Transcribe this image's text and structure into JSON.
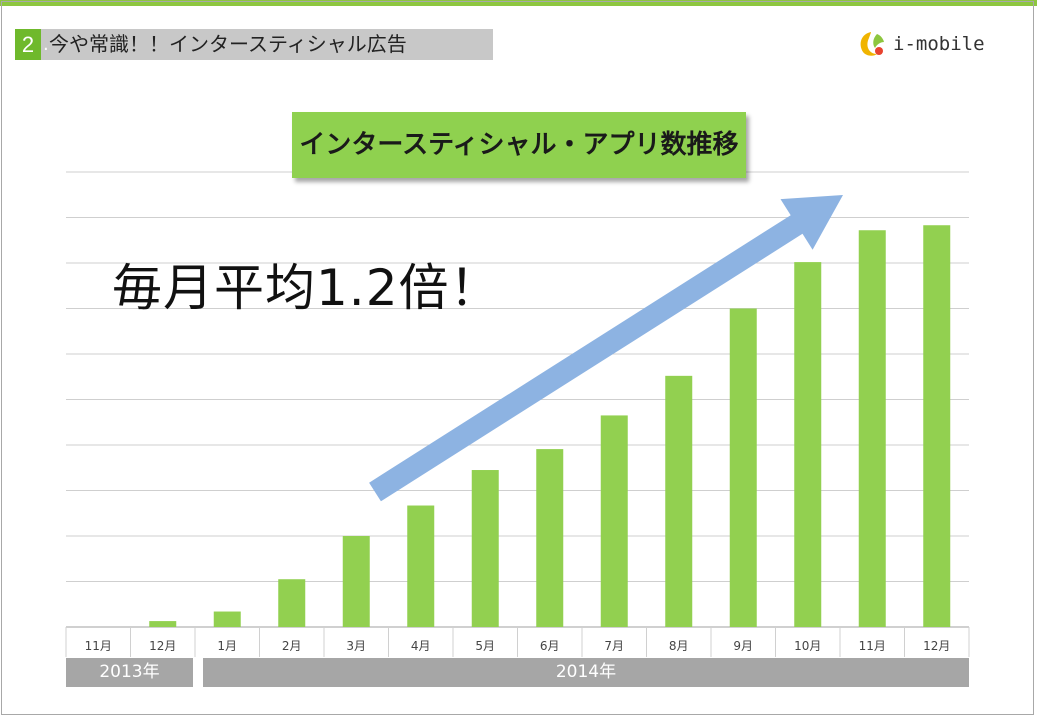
{
  "header": {
    "section_number": "2",
    "section_dot": ".",
    "section_title": "今や常識！！インタースティシャル広告",
    "logo_text": "i-mobile",
    "logo_icon": "i-mobile-logo-icon",
    "accent_color": "#8dc63f"
  },
  "chart_data": {
    "type": "bar",
    "title": "インタースティシャル・アプリ数推移",
    "annotation": "毎月平均1.2倍！",
    "categories": [
      "11月",
      "12月",
      "1月",
      "2月",
      "3月",
      "4月",
      "5月",
      "6月",
      "7月",
      "8月",
      "9月",
      "10月",
      "11月",
      "12月"
    ],
    "values": [
      0,
      1.3,
      3.4,
      10.5,
      20,
      26.7,
      34.5,
      39.1,
      46.5,
      55.2,
      70,
      80.2,
      87.2,
      88.3
    ],
    "ylim": [
      0,
      100
    ],
    "grid": true,
    "year_groups": [
      "2013年",
      "2014年"
    ],
    "bar_color": "#92d050",
    "arrow_color": "#8db3e2"
  }
}
